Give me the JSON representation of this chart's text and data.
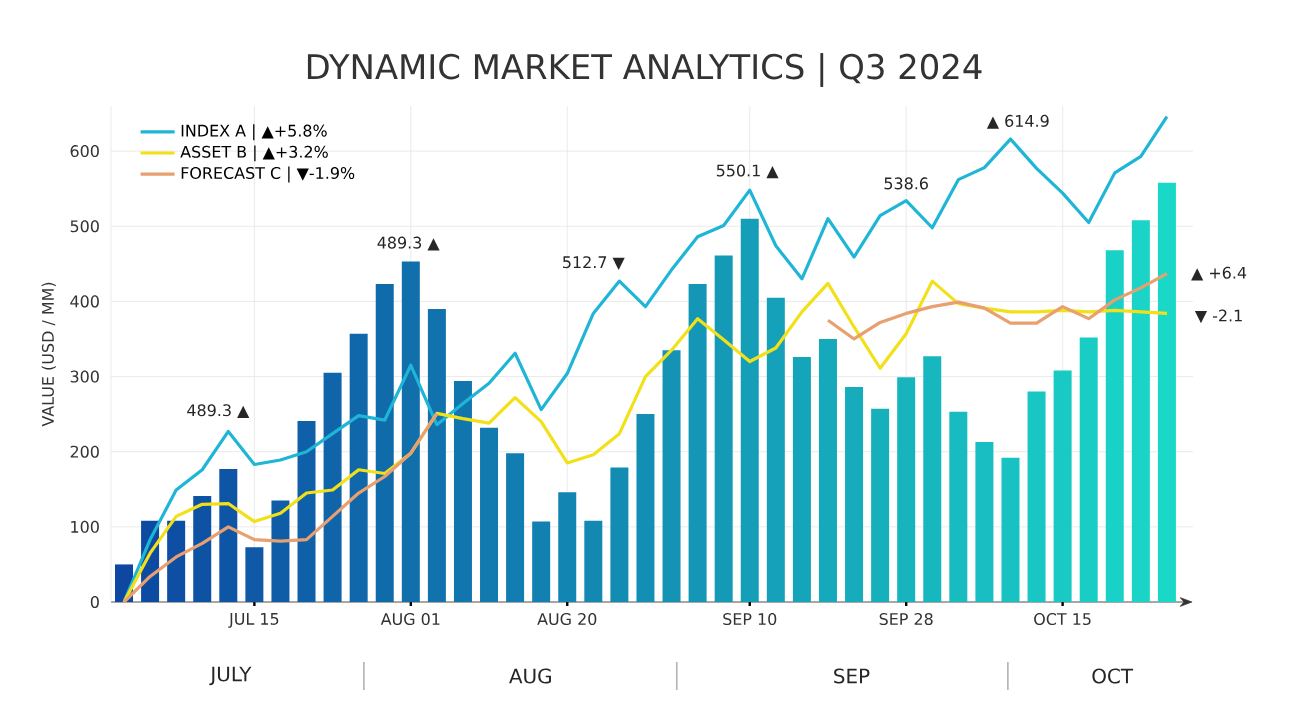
{
  "chart_data": {
    "type": "bar",
    "title": "DYNAMIC MARKET ANALYTICS | Q3 2024",
    "ylabel": "VALUE (USD / MM)",
    "categories": [
      null,
      null,
      null,
      null,
      null,
      "JUL 15",
      null,
      null,
      null,
      null,
      null,
      "AUG 01",
      null,
      null,
      null,
      null,
      null,
      "AUG 20",
      null,
      null,
      null,
      null,
      null,
      null,
      "SEP 10",
      null,
      null,
      null,
      null,
      null,
      "SEP 28",
      null,
      null,
      null,
      null,
      null,
      "OCT 15",
      null,
      null,
      null,
      null
    ],
    "series": [
      {
        "values": [
          50,
          108,
          108,
          141,
          177,
          73,
          135,
          241,
          305,
          357,
          423,
          453,
          390,
          294,
          232,
          198,
          107,
          146,
          108,
          179,
          250,
          335,
          423,
          461,
          510,
          405,
          326,
          350,
          286,
          257,
          299,
          327,
          253,
          213,
          192,
          280,
          308,
          352,
          468,
          508,
          558
        ],
        "colors": [
          "#0d47a1",
          "#0d4ba2",
          "#0e4ea3",
          "#0e52a4",
          "#0e56a5",
          "#0f59a6",
          "#0f5da7",
          "#0f60a8",
          "#1064a9",
          "#1068aa",
          "#106bab",
          "#116fac",
          "#1172ad",
          "#1176ae",
          "#127aaf",
          "#127db0",
          "#1281b1",
          "#1285b2",
          "#1388b3",
          "#138cb4",
          "#138fb5",
          "#1493b5",
          "#1497b6",
          "#149ab7",
          "#159eb8",
          "#15a1b9",
          "#15a5ba",
          "#16a9bb",
          "#16acbc",
          "#16b0bd",
          "#17b4be",
          "#17b7bf",
          "#17bbc0",
          "#18bec1",
          "#18c2c2",
          "#18c6c3",
          "#19c9c4",
          "#19cdc5",
          "#19d1c6",
          "#1ad4c7",
          "#1ad8c8"
        ]
      },
      {
        "type": "line",
        "name": "INDEX A | ▲+5.8%",
        "color": "#1fb5d6",
        "values": [
          0,
          83,
          149,
          176,
          227,
          183,
          189,
          200,
          224,
          248,
          242,
          315,
          236,
          264,
          291,
          331,
          256,
          304,
          384,
          427,
          393,
          442,
          486,
          501,
          548,
          474,
          430,
          510,
          459,
          514,
          534,
          498,
          562,
          578,
          616,
          577,
          544,
          505,
          571,
          593,
          646
        ]
      },
      {
        "type": "line",
        "name": "ASSET B | ▲+3.2%",
        "color": "#f2e019",
        "values": [
          0,
          65,
          114,
          130,
          131,
          107,
          118,
          145,
          149,
          176,
          171,
          198,
          251,
          244,
          238,
          272,
          240,
          185,
          196,
          224,
          300,
          335,
          377,
          349,
          320,
          338,
          386,
          424,
          366,
          311,
          357,
          427,
          397,
          391,
          386,
          386,
          388,
          386,
          388,
          386,
          384
        ]
      },
      {
        "type": "line",
        "name": "FORECAST C | ▼-1.9%",
        "color": "#e8a070",
        "values": [
          0,
          34,
          60,
          78,
          100,
          83,
          81,
          83,
          114,
          145,
          167,
          198,
          251,
          null,
          null,
          null,
          null,
          null,
          null,
          null,
          null,
          null,
          null,
          null,
          null,
          null,
          null,
          375,
          350,
          372,
          384,
          393,
          399,
          391,
          371,
          371,
          393,
          377,
          402,
          418,
          437
        ]
      }
    ],
    "ylim": [
      0,
      660
    ],
    "yticks": [
      0,
      100,
      200,
      300,
      400,
      500,
      600
    ],
    "grid": true,
    "legend": "top left",
    "annotations": [
      "489.3 ▲",
      "489.3 ▲",
      "512.7 ▼",
      "550.1 ▲",
      "538.6",
      "▲ 614.9",
      "▲ +6.4",
      "▼ -2.1",
      "JULY",
      "AUG",
      "SEP",
      "OCT"
    ]
  }
}
